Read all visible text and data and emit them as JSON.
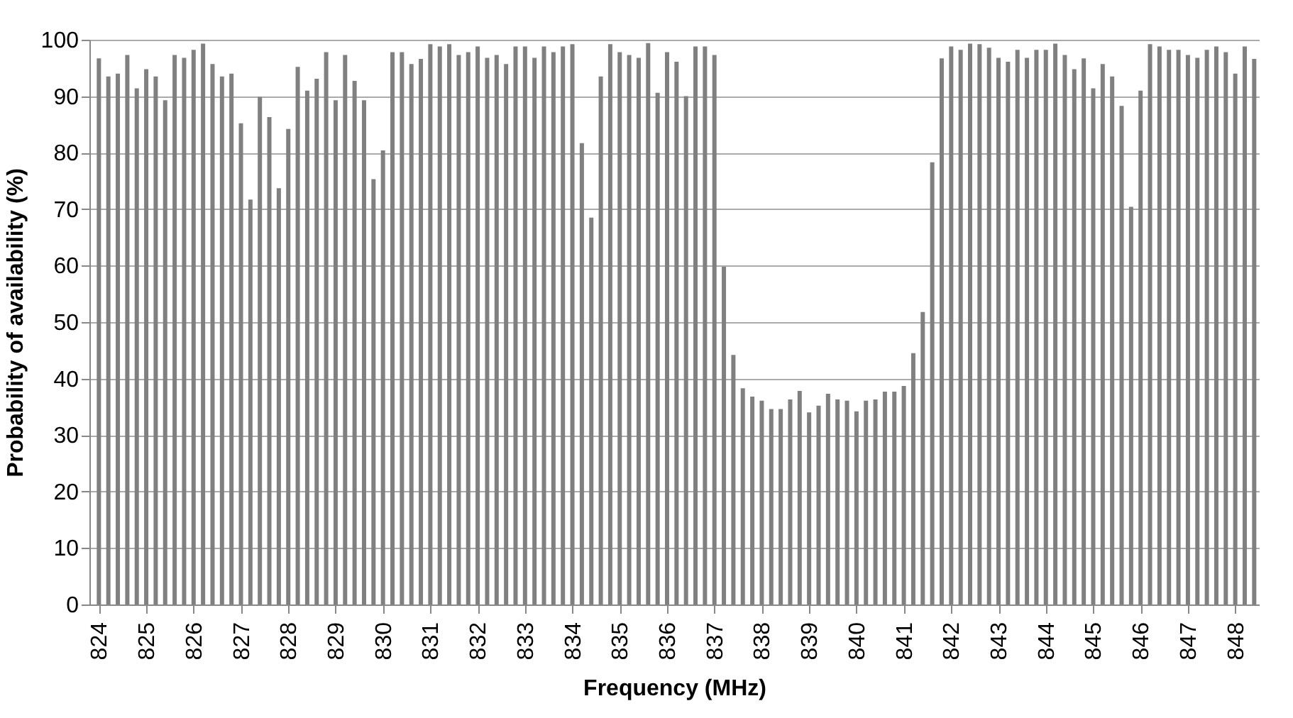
{
  "chart_data": {
    "type": "bar",
    "xlabel": "Frequency (MHz)",
    "ylabel": "Probability of availability (%)",
    "x": [
      824,
      824.2,
      824.4,
      824.6,
      824.8,
      825,
      825.2,
      825.4,
      825.6,
      825.8,
      826,
      826.2,
      826.4,
      826.6,
      826.8,
      827,
      827.2,
      827.4,
      827.6,
      827.8,
      828,
      828.2,
      828.4,
      828.6,
      828.8,
      829,
      829.2,
      829.4,
      829.6,
      829.8,
      830,
      830.2,
      830.4,
      830.6,
      830.8,
      831,
      831.2,
      831.4,
      831.6,
      831.8,
      832,
      832.2,
      832.4,
      832.6,
      832.8,
      833,
      833.2,
      833.4,
      833.6,
      833.8,
      834,
      834.2,
      834.4,
      834.6,
      834.8,
      835,
      835.2,
      835.4,
      835.6,
      835.8,
      836,
      836.2,
      836.4,
      836.6,
      836.8,
      837,
      837.2,
      837.4,
      837.6,
      837.8,
      838,
      838.2,
      838.4,
      838.6,
      838.8,
      839,
      839.2,
      839.4,
      839.6,
      839.8,
      840,
      840.2,
      840.4,
      840.6,
      840.8,
      841,
      841.2,
      841.4,
      841.6,
      841.8,
      842,
      842.2,
      842.4,
      842.6,
      842.8,
      843,
      843.2,
      843.4,
      843.6,
      843.8,
      844,
      844.2,
      844.4,
      844.6,
      844.8,
      845,
      845.2,
      845.4,
      845.6,
      845.8,
      846,
      846.2,
      846.4,
      846.6,
      846.8,
      847,
      847.2,
      847.4,
      847.6,
      847.8,
      848,
      848.2,
      848.4
    ],
    "values": [
      96.7,
      93.5,
      94,
      97.3,
      91.4,
      94.8,
      93.5,
      89.3,
      97.3,
      96.8,
      98.2,
      99.3,
      95.7,
      93.5,
      94,
      85.2,
      71.7,
      89.9,
      86.3,
      73.7,
      84.2,
      95.2,
      91,
      93.1,
      97.8,
      89.3,
      97.3,
      92.7,
      89.3,
      75.3,
      80.4,
      97.8,
      97.8,
      95.7,
      96.6,
      99.2,
      98.8,
      99.2,
      97.3,
      97.8,
      98.8,
      96.8,
      97.3,
      95.7,
      98.8,
      98.8,
      96.8,
      98.8,
      97.8,
      98.8,
      99.2,
      81.7,
      68.5,
      93.5,
      99.2,
      97.8,
      97.3,
      96.8,
      99.4,
      90.6,
      97.8,
      96.1,
      90,
      98.8,
      98.8,
      97.3,
      59.8,
      44.2,
      38.3,
      36.8,
      36.1,
      34.6,
      34.6,
      36.3,
      37.8,
      34,
      35.2,
      37.3,
      36.3,
      36.1,
      34.2,
      36.1,
      36.3,
      37.7,
      37.7,
      38.7,
      44.5,
      51.8,
      78.3,
      96.7,
      98.8,
      98.2,
      99.3,
      99.2,
      98.6,
      96.8,
      96.1,
      98.2,
      96.8,
      98.2,
      98.2,
      99.3,
      97.3,
      94.8,
      96.7,
      91.4,
      95.7,
      93.5,
      88.3,
      70.4,
      91,
      99.2,
      98.8,
      98.2,
      98.2,
      97.3,
      96.8,
      98.2,
      98.8,
      97.8,
      94,
      98.8,
      96.6
    ],
    "color": "#808080",
    "xlim": [
      823.8,
      848.5
    ],
    "xticks": [
      824,
      825,
      826,
      827,
      828,
      829,
      830,
      831,
      832,
      833,
      834,
      835,
      836,
      837,
      838,
      839,
      840,
      841,
      842,
      843,
      844,
      845,
      846,
      847,
      848
    ],
    "ylim": [
      0,
      100
    ],
    "yticks": [
      0,
      10,
      20,
      30,
      40,
      50,
      60,
      70,
      80,
      90,
      100
    ],
    "grid": "y"
  }
}
